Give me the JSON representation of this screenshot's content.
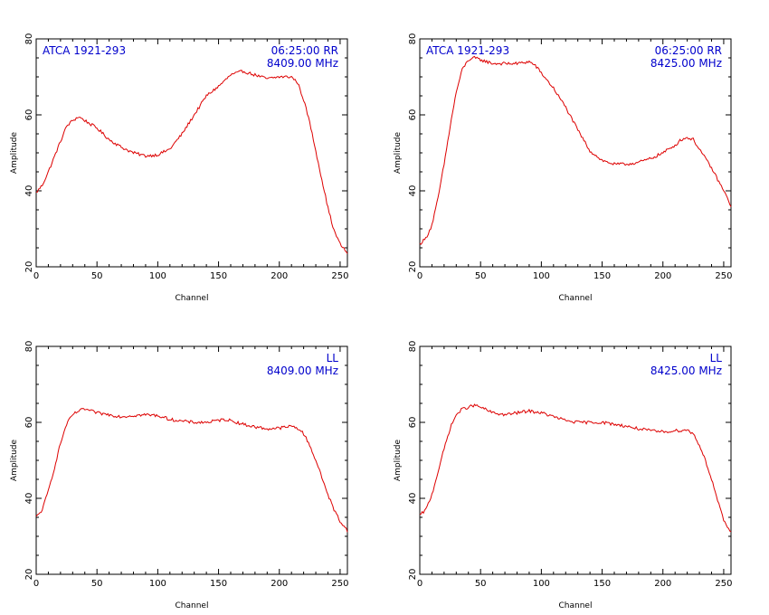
{
  "chart_data": [
    {
      "type": "line",
      "xlabel": "Channel",
      "ylabel": "Amplitude",
      "xlim": [
        0,
        256
      ],
      "ylim": [
        20,
        80
      ],
      "xticks": [
        0,
        50,
        100,
        150,
        200,
        250
      ],
      "yticks": [
        20,
        40,
        60,
        80
      ],
      "grid": false,
      "annotations": {
        "left": "ATCA 1921-293",
        "right1": "06:25:00  RR",
        "right2": "8409.00 MHz"
      },
      "colors": {
        "line": "#dd0000",
        "annotation": "#0000cc"
      },
      "x": [
        0,
        5,
        10,
        15,
        20,
        25,
        30,
        35,
        40,
        50,
        60,
        70,
        80,
        90,
        100,
        110,
        120,
        130,
        140,
        150,
        160,
        170,
        180,
        190,
        200,
        210,
        215,
        220,
        225,
        230,
        235,
        240,
        245,
        250,
        256
      ],
      "values": [
        39.5,
        41.5,
        45,
        49,
        53,
        57,
        58.5,
        59.5,
        58.5,
        56.5,
        53.5,
        51.5,
        50,
        49.2,
        49.5,
        51,
        55,
        60,
        65,
        67.5,
        70.5,
        71.5,
        70.5,
        69.5,
        70,
        70,
        68.5,
        64,
        58,
        50.5,
        43,
        35.5,
        29.5,
        26,
        23.5
      ]
    },
    {
      "type": "line",
      "xlabel": "Channel",
      "ylabel": "Amplitude",
      "xlim": [
        0,
        256
      ],
      "ylim": [
        20,
        80
      ],
      "xticks": [
        0,
        50,
        100,
        150,
        200,
        250
      ],
      "yticks": [
        20,
        40,
        60,
        80
      ],
      "grid": false,
      "annotations": {
        "left": "ATCA 1921-293",
        "right1": "06:25:00  RR",
        "right2": "8425.00 MHz"
      },
      "colors": {
        "line": "#dd0000",
        "annotation": "#0000cc"
      },
      "x": [
        0,
        5,
        10,
        15,
        20,
        25,
        30,
        35,
        40,
        45,
        50,
        60,
        70,
        80,
        90,
        95,
        100,
        110,
        120,
        130,
        140,
        150,
        160,
        170,
        180,
        190,
        200,
        210,
        215,
        220,
        225,
        230,
        240,
        250,
        256
      ],
      "values": [
        26,
        27.5,
        31,
        38,
        47,
        57,
        66,
        72,
        74.5,
        75,
        74.5,
        73.5,
        73.5,
        73.5,
        74,
        73,
        71,
        67,
        62,
        56,
        50.5,
        48,
        47,
        47,
        47.5,
        48.5,
        50,
        52,
        53.5,
        54,
        53.5,
        51,
        46,
        40,
        36
      ]
    },
    {
      "type": "line",
      "xlabel": "Channel",
      "ylabel": "Amplitude",
      "xlim": [
        0,
        256
      ],
      "ylim": [
        20,
        80
      ],
      "xticks": [
        0,
        50,
        100,
        150,
        200,
        250
      ],
      "yticks": [
        20,
        40,
        60,
        80
      ],
      "grid": false,
      "annotations": {
        "left": "",
        "right1": "LL",
        "right2": "8409.00 MHz"
      },
      "colors": {
        "line": "#dd0000",
        "annotation": "#0000cc"
      },
      "x": [
        0,
        5,
        10,
        15,
        20,
        25,
        30,
        35,
        40,
        45,
        50,
        60,
        70,
        80,
        90,
        100,
        110,
        120,
        130,
        140,
        150,
        155,
        160,
        170,
        180,
        190,
        200,
        210,
        215,
        220,
        225,
        230,
        235,
        240,
        245,
        250,
        256
      ],
      "values": [
        35,
        37,
        42,
        48,
        54.5,
        59.5,
        62,
        63,
        63.5,
        63,
        62.5,
        62,
        61.5,
        61.8,
        62,
        61.8,
        60.8,
        60.3,
        60,
        60,
        60.5,
        60.8,
        60.5,
        59.5,
        58.8,
        58.3,
        58.5,
        59,
        58.5,
        57,
        54,
        50,
        45.5,
        41,
        37,
        34,
        31.5
      ]
    },
    {
      "type": "line",
      "xlabel": "Channel",
      "ylabel": "Amplitude",
      "xlim": [
        0,
        256
      ],
      "ylim": [
        20,
        80
      ],
      "xticks": [
        0,
        50,
        100,
        150,
        200,
        250
      ],
      "yticks": [
        20,
        40,
        60,
        80
      ],
      "grid": false,
      "annotations": {
        "left": "",
        "right1": "LL",
        "right2": "8425.00 MHz"
      },
      "colors": {
        "line": "#dd0000",
        "annotation": "#0000cc"
      },
      "x": [
        0,
        5,
        10,
        15,
        20,
        25,
        30,
        35,
        40,
        45,
        50,
        60,
        70,
        80,
        90,
        100,
        110,
        120,
        130,
        140,
        150,
        160,
        170,
        180,
        190,
        200,
        210,
        220,
        225,
        230,
        235,
        240,
        245,
        250,
        256
      ],
      "values": [
        35.5,
        37,
        41,
        47,
        53,
        58.5,
        62,
        63.5,
        64,
        64.5,
        64,
        62.5,
        62,
        62.5,
        63,
        62.5,
        61.5,
        60.5,
        60,
        60,
        60,
        59.5,
        59,
        58.3,
        57.8,
        57.5,
        57.8,
        58,
        57,
        54,
        50,
        45,
        39.5,
        34,
        31
      ]
    }
  ]
}
